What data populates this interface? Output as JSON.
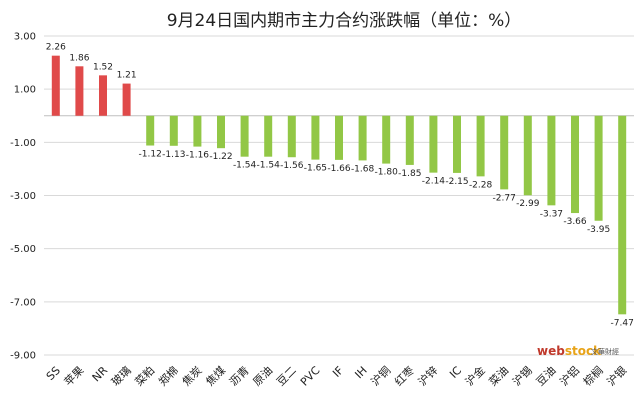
{
  "chart_data": {
    "type": "bar",
    "title": "9月24日国内期市主力合约涨跌幅（单位：%）",
    "xlabel": "",
    "ylabel": "",
    "ylim": [
      -9,
      3
    ],
    "yticks": [
      "3.00",
      "1.00",
      "-1.00",
      "-3.00",
      "-5.00",
      "-7.00",
      "-9.00"
    ],
    "grid": true,
    "legend": "none",
    "categories": [
      "SS",
      "苹果",
      "NR",
      "玻璃",
      "菜粕",
      "郑棉",
      "焦炭",
      "焦煤",
      "沥青",
      "原油",
      "豆二",
      "PVC",
      "IF",
      "IH",
      "沪铜",
      "红枣",
      "沪锌",
      "IC",
      "沪金",
      "菜油",
      "沪锡",
      "豆油",
      "沪铝",
      "棕榈",
      "沪银"
    ],
    "values": [
      2.26,
      1.86,
      1.52,
      1.21,
      -1.12,
      -1.13,
      -1.16,
      -1.22,
      -1.54,
      -1.54,
      -1.56,
      -1.65,
      -1.66,
      -1.68,
      -1.8,
      -1.85,
      -2.14,
      -2.15,
      -2.28,
      -2.77,
      -2.99,
      -3.37,
      -3.66,
      -3.95,
      -7.47
    ],
    "value_labels": [
      "2.26",
      "1.86",
      "1.52",
      "1.21",
      "-1.12",
      "-1.13",
      "-1.16",
      "-1.22",
      "-1.54",
      "-1.54",
      "-1.56",
      "-1.65",
      "-1.66",
      "-1.68",
      "-1.80",
      "-1.85",
      "-2.14",
      "-2.15",
      "-2.28",
      "-2.77",
      "-2.99",
      "-3.37",
      "-3.66",
      "-3.95",
      "-7.47"
    ],
    "colors": {
      "positive": "#e04a4a",
      "negative": "#92c746"
    }
  },
  "watermark": {
    "brand": "webstock",
    "brand_sub": "文華財經",
    "color_web": "#c0392b",
    "color_stock": "#e8a317"
  }
}
